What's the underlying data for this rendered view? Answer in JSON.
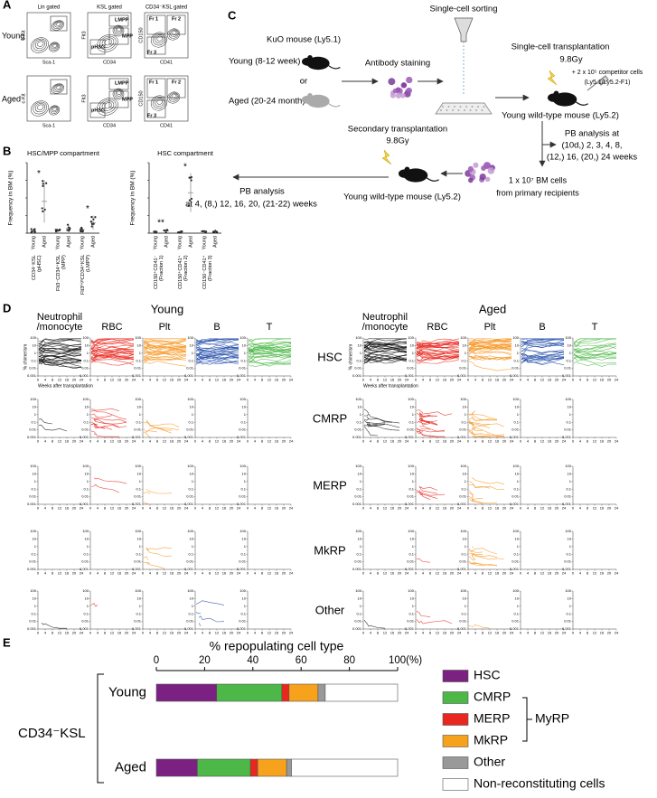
{
  "panel_a": {
    "label": "A",
    "rows": [
      "Young",
      "Aged"
    ],
    "plots": [
      {
        "title": "Lin gated",
        "x_axis": "Sca-1",
        "y_axis": "c-Kit"
      },
      {
        "title": "KSL gated",
        "x_axis": "CD34",
        "y_axis": "Flt3",
        "gates": [
          "LMPP",
          "MPP",
          "pHSC"
        ]
      },
      {
        "title": "CD34⁻KSL gated",
        "x_axis": "CD41",
        "y_axis": "CD150",
        "gates": [
          "Fr 1",
          "Fr 2",
          "Fr 3"
        ]
      }
    ]
  },
  "panel_b": {
    "label": "B",
    "y_axis": "Frequency in BM (%)",
    "groups": [
      "Young",
      "Aged"
    ],
    "charts": [
      {
        "title": "HSC/MPP compartment",
        "categories": [
          {
            "name": "CD34⁻KSL (pHSC)",
            "significance": "*"
          },
          {
            "name": "Flt3⁻CD34⁺KSL (MPP)"
          },
          {
            "name": "Flt3ʰⁱᵍʰCD34⁺KSL (LMPP)",
            "significance": "*"
          }
        ]
      },
      {
        "title": "HSC compartment",
        "categories": [
          {
            "name": "CD150⁺CD41⁻ (Fraction 1)",
            "significance": "**"
          },
          {
            "name": "CD150⁺CD41⁺ (Fraction 2)",
            "significance": "*"
          },
          {
            "name": "CD150⁻CD41⁺ (Fraction 3)"
          }
        ]
      }
    ]
  },
  "panel_c": {
    "label": "C",
    "donor": "KuO mouse (Ly5.1)",
    "young": "Young (8-12 week)",
    "or": "or",
    "aged": "Aged (20-24 month)",
    "staining": "Antibody staining",
    "sorting": "Single-cell sorting",
    "transplant": "Single-cell transplantation",
    "dose": "9.8Gy",
    "competitor": "+ 2 x 10⁵ competitor cells",
    "competitor_strain": "(Ly5.1/Ly5.2-F1)",
    "recipient": "Young wild-type mouse (Ly5.2)",
    "pb1": [
      "PB analysis at",
      "(10d,) 2, 3, 4, 8,",
      "(12,) 16, (20,) 24 weeks"
    ],
    "bm": [
      "1 x 10⁷ BM cells",
      "from primary recipients"
    ],
    "secondary": "Secondary transplantation",
    "dose2": "9.8Gy",
    "recipient2": "Young wild-type mouse (Ly5.2)",
    "pb2": [
      "PB analysis",
      "at 4, (8,) 12, 16, 20, (21-22) weeks"
    ]
  },
  "panel_d": {
    "label": "D",
    "groups": [
      "Young",
      "Aged"
    ],
    "columns": [
      "Neutrophil /monocyte",
      "RBC",
      "Plt",
      "B",
      "T"
    ],
    "rows": [
      "HSC",
      "CMRP",
      "MERP",
      "MkRP",
      "Other"
    ],
    "y_axis": "% chimerism",
    "x_axis": "Weeks after transplantation",
    "yticks": [
      100,
      10,
      1,
      0.1,
      0.01,
      0.001
    ],
    "xticks": [
      0,
      4,
      8,
      12,
      16,
      20,
      24
    ],
    "y_log": true
  },
  "chart_data": {
    "type": "bar",
    "orientation": "horizontal",
    "stacked": true,
    "label": "E",
    "title": "% repopulating cell type",
    "group_label": "CD34⁻KSL",
    "categories": [
      "Young",
      "Aged"
    ],
    "series": [
      {
        "name": "HSC",
        "color": "#7b2181",
        "values": [
          25,
          17
        ]
      },
      {
        "name": "CMRP",
        "color": "#4db848",
        "values": [
          27,
          22
        ],
        "bracket": "MyRP"
      },
      {
        "name": "MERP",
        "color": "#e8281e",
        "values": [
          3,
          3
        ],
        "bracket": "MyRP"
      },
      {
        "name": "MkRP",
        "color": "#f6a21c",
        "values": [
          12,
          12
        ],
        "bracket": "MyRP"
      },
      {
        "name": "Other",
        "color": "#999999",
        "values": [
          3,
          2
        ]
      },
      {
        "name": "Non-reconstituting cells",
        "color": "#ffffff",
        "values": [
          30,
          44
        ]
      }
    ],
    "xlim": [
      0,
      100
    ],
    "xticks": [
      0,
      20,
      40,
      60,
      80,
      {
        "value": 100,
        "label": "100(%)"
      }
    ]
  }
}
